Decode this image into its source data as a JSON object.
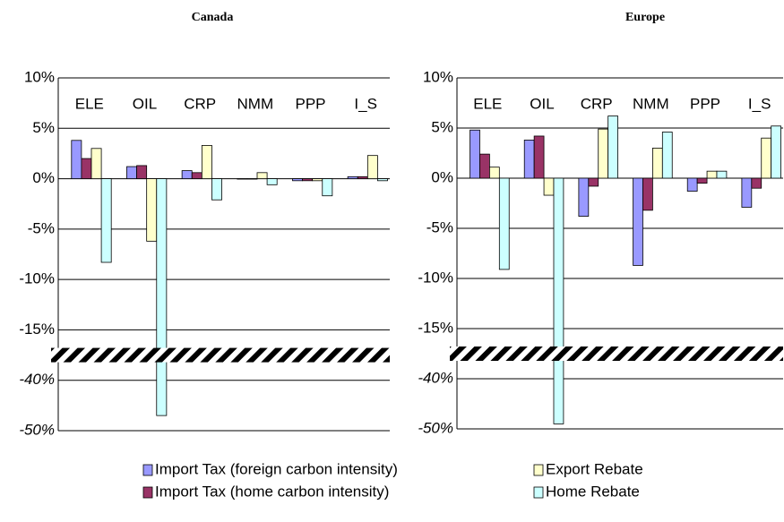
{
  "chart_data": [
    {
      "type": "bar",
      "title": "Canada",
      "categories": [
        "ELE",
        "OIL",
        "CRP",
        "NMM",
        "PPP",
        "I_S"
      ],
      "series": [
        {
          "name": "Import Tax (foreign carbon intensity)",
          "color": "#9999ff",
          "values": [
            3.8,
            1.2,
            0.8,
            0,
            -0.2,
            0.2
          ]
        },
        {
          "name": "Import Tax (home carbon intensity)",
          "color": "#993366",
          "values": [
            2.0,
            1.3,
            0.6,
            0,
            -0.2,
            0.2
          ]
        },
        {
          "name": "Export Rebate",
          "color": "#ffffcc",
          "values": [
            3.0,
            -6.2,
            3.3,
            0.6,
            -0.2,
            2.3
          ]
        },
        {
          "name": "Home Rebate",
          "color": "#ccffff",
          "values": [
            -8.3,
            -47,
            -2.1,
            -0.6,
            -1.7,
            -0.2
          ]
        }
      ],
      "ylim": [
        -50,
        10
      ],
      "yticks": [
        {
          "value": 10,
          "label": "10%"
        },
        {
          "value": 5,
          "label": "5%"
        },
        {
          "value": 0,
          "label": "0%"
        },
        {
          "value": -5,
          "label": "-5%"
        },
        {
          "value": -10,
          "label": "-10%"
        },
        {
          "value": -15,
          "label": "-15%"
        },
        {
          "value": -40,
          "label": "-40%"
        },
        {
          "value": -50,
          "label": "-50%"
        }
      ],
      "axis_break": [
        -15,
        -40
      ],
      "grid": true
    },
    {
      "type": "bar",
      "title": "Europe",
      "categories": [
        "ELE",
        "OIL",
        "CRP",
        "NMM",
        "PPP",
        "I_S"
      ],
      "series": [
        {
          "name": "Import Tax (foreign carbon intensity)",
          "color": "#9999ff",
          "values": [
            4.8,
            3.8,
            -3.8,
            -8.7,
            -1.3,
            -2.9
          ]
        },
        {
          "name": "Import Tax (home carbon intensity)",
          "color": "#993366",
          "values": [
            2.4,
            4.2,
            -0.8,
            -3.2,
            -0.5,
            -1.0
          ]
        },
        {
          "name": "Export Rebate",
          "color": "#ffffcc",
          "values": [
            1.1,
            -1.7,
            4.9,
            3.0,
            0.7,
            4.0
          ]
        },
        {
          "name": "Home Rebate",
          "color": "#ccffff",
          "values": [
            -9.1,
            -49,
            6.2,
            4.6,
            0.7,
            5.2
          ]
        }
      ],
      "ylim": [
        -50,
        10
      ],
      "yticks": [
        {
          "value": 10,
          "label": "10%"
        },
        {
          "value": 5,
          "label": "5%"
        },
        {
          "value": 0,
          "label": "0%"
        },
        {
          "value": -5,
          "label": "-5%"
        },
        {
          "value": -10,
          "label": "-10%"
        },
        {
          "value": -15,
          "label": "-15%"
        },
        {
          "value": -40,
          "label": "-40%"
        },
        {
          "value": -50,
          "label": "-50%"
        }
      ],
      "axis_break": [
        -15,
        -40
      ],
      "grid": true
    }
  ]
}
